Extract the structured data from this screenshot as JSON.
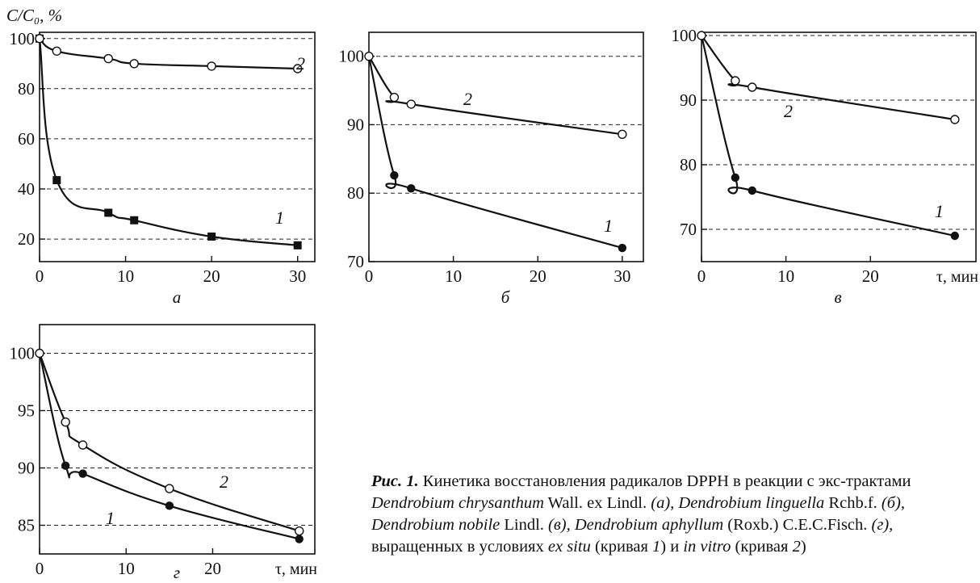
{
  "y_label": "C/C₀, %",
  "x_unit_label": "τ, мин",
  "chart_data": [
    {
      "type": "line",
      "panel": "a",
      "panel_label": "а",
      "x_ticks": [
        0,
        10,
        20,
        30
      ],
      "y_ticks": [
        20,
        40,
        60,
        80,
        100
      ],
      "xlim": [
        0,
        32
      ],
      "ylim": [
        11,
        102.5
      ],
      "grid": "dashed horizontal",
      "series": [
        {
          "label": "1",
          "marker": "filled-square",
          "x": [
            0,
            2,
            8,
            11,
            20,
            30
          ],
          "y": [
            100,
            43.5,
            30.5,
            27.5,
            21,
            17.5
          ]
        },
        {
          "label": "2",
          "marker": "open-circle",
          "x": [
            0,
            2,
            8,
            11,
            20,
            30
          ],
          "y": [
            100,
            95,
            92,
            90,
            89,
            88
          ]
        }
      ]
    },
    {
      "type": "line",
      "panel": "b",
      "panel_label": "б",
      "x_ticks": [
        0,
        10,
        20,
        30
      ],
      "y_ticks": [
        70,
        80,
        90,
        100
      ],
      "xlim": [
        0,
        32.5
      ],
      "ylim": [
        70,
        103.5
      ],
      "grid": "dashed horizontal",
      "series": [
        {
          "label": "1",
          "marker": "filled-circle",
          "x": [
            0,
            3,
            5,
            30
          ],
          "y": [
            100,
            82.6,
            80.7,
            72
          ]
        },
        {
          "label": "2",
          "marker": "open-circle",
          "x": [
            0,
            3,
            5,
            30
          ],
          "y": [
            100,
            94,
            93,
            88.6
          ]
        }
      ]
    },
    {
      "type": "line",
      "panel": "c",
      "panel_label": "в",
      "x_ticks": [
        0,
        10,
        20
      ],
      "y_ticks": [
        70,
        80,
        90,
        100
      ],
      "xlim": [
        0,
        32.5
      ],
      "ylim": [
        65,
        100.5
      ],
      "grid": "dashed horizontal",
      "series": [
        {
          "label": "1",
          "marker": "filled-circle",
          "x": [
            0,
            4,
            6,
            30
          ],
          "y": [
            100,
            78,
            76,
            69
          ]
        },
        {
          "label": "2",
          "marker": "open-circle",
          "x": [
            0,
            4,
            6,
            30
          ],
          "y": [
            100,
            93,
            92,
            87
          ]
        }
      ]
    },
    {
      "type": "line",
      "panel": "d",
      "panel_label": "г",
      "x_ticks": [
        0,
        10,
        20
      ],
      "y_ticks": [
        85,
        90,
        95,
        100
      ],
      "xlim": [
        0,
        31.8
      ],
      "ylim": [
        82.5,
        102.5
      ],
      "grid": "dashed horizontal",
      "series": [
        {
          "label": "1",
          "marker": "filled-circle",
          "x": [
            0,
            3,
            5,
            15,
            30
          ],
          "y": [
            100,
            90.2,
            89.5,
            86.7,
            83.8
          ]
        },
        {
          "label": "2",
          "marker": "open-circle",
          "x": [
            0,
            3,
            5,
            15,
            30
          ],
          "y": [
            100,
            94,
            92,
            88.2,
            84.5
          ]
        }
      ]
    }
  ],
  "caption": {
    "prefix": "Рис. 1.",
    "part1": " Кинетика восстановления радикалов DPPH в реакции с экс-трактами ",
    "sp_a": "Dendrobium chrysanthum",
    "auth_a": " Wall. ex Lindl. ",
    "lab_a": "(а), ",
    "sp_b": "Dendrobium linguella",
    "auth_b": " Rchb.f. ",
    "lab_b": "(б), ",
    "sp_c": "Dendrobium nobile",
    "auth_c": " Lindl. ",
    "lab_c": "(в), ",
    "sp_d": "Dendrobium aphyllum",
    "auth_d": " (Roxb.) C.E.C.Fisch. ",
    "lab_d": "(г),",
    "part2": " выращенных в условиях ",
    "ex_situ": "ex situ",
    "part3": " (кривая ",
    "n1": "1",
    "part4": ") и ",
    "in_vitro": "in vitro",
    "part5": " (кривая ",
    "n2": "2",
    "part6": ")"
  }
}
